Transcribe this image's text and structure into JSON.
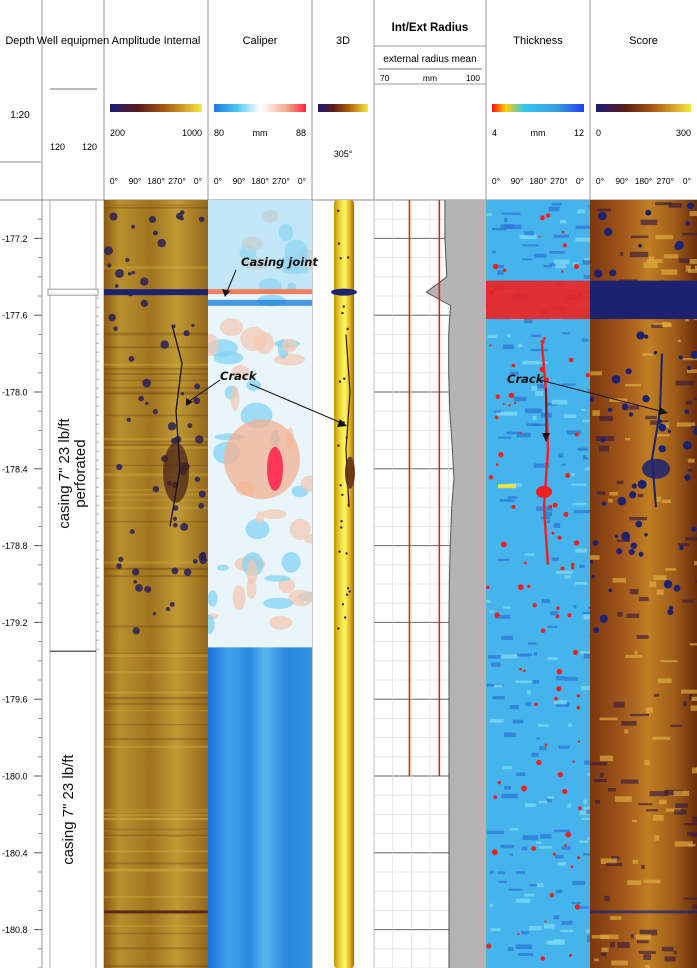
{
  "chart_data": {
    "type": "well-log",
    "depth_axis": {
      "title": "Depth",
      "scale": "1:20",
      "range": [
        177.0,
        181.0
      ],
      "ticks": [
        -177.2,
        -177.6,
        -178.0,
        -178.4,
        -178.8,
        -179.2,
        -179.6,
        -180.0,
        -180.4,
        -180.8
      ],
      "tick_labels": [
        "-177.2",
        "-177.6",
        "-178.0",
        "-178.4",
        "-178.8",
        "-179.2",
        "-179.6",
        "-180.0",
        "-180.4",
        "-180.8"
      ]
    },
    "tracks": [
      {
        "key": "well",
        "title": "Well equipmen",
        "scale_min": "120",
        "scale_max": "120"
      },
      {
        "key": "amp",
        "title": "Amplitude Internal",
        "scale_min": "200",
        "scale_max": "1000",
        "unit": "",
        "colormap": [
          "#1a1d7a",
          "#5a1a1a",
          "#a85c10",
          "#e0b030",
          "#f0ec40"
        ],
        "azimuth_ticks": [
          "0°",
          "90°",
          "180°",
          "270°",
          "0°"
        ]
      },
      {
        "key": "cal",
        "title": "Caliper",
        "scale_min": "80",
        "scale_max": "88",
        "unit": "mm",
        "colormap": [
          "#1c7ae0",
          "#48c8f0",
          "#ffffff",
          "#f0b090",
          "#ff2040"
        ],
        "azimuth_ticks": [
          "0°",
          "90°",
          "180°",
          "270°",
          "0°"
        ]
      },
      {
        "key": "d3",
        "title": "3D",
        "view_angle": "305°",
        "colormap": [
          "#1a1d7a",
          "#5a1a1a",
          "#a85c10",
          "#e0b030",
          "#f0ec40"
        ]
      },
      {
        "key": "rad",
        "title": "Int/Ext Radius",
        "curve_label": "external radius mean",
        "scale_min": "70",
        "scale_max": "100",
        "unit": "mm"
      },
      {
        "key": "thk",
        "title": "Thickness",
        "scale_min": "4",
        "scale_max": "12",
        "unit": "mm",
        "colormap": [
          "#ff1010",
          "#ffd000",
          "#30c8f0",
          "#38a0e0",
          "#2040f0"
        ],
        "azimuth_ticks": [
          "0°",
          "90°",
          "180°",
          "270°",
          "0°"
        ]
      },
      {
        "key": "score",
        "title": "Score",
        "scale_min": "0",
        "scale_max": "300",
        "unit": "",
        "colormap": [
          "#1a1d7a",
          "#5a1a1a",
          "#a85c10",
          "#e0b030",
          "#f0ec40"
        ],
        "azimuth_ticks": [
          "0°",
          "90°",
          "180°",
          "270°",
          "0°"
        ]
      }
    ],
    "intervals": [
      {
        "label": "casing 7\" 23 lb/ft perforated",
        "top": 177.5,
        "bottom": 179.35
      },
      {
        "label": "casing 7\" 23 lb/ft",
        "top": 179.35,
        "bottom": 181.0
      }
    ],
    "annotations": [
      {
        "text": "Casing joint",
        "depth": 177.45
      },
      {
        "text": "Crack",
        "depth": 177.9
      },
      {
        "text": "Crack",
        "depth": 177.9
      }
    ],
    "external_radius_mean_mm": {
      "depth": [
        177.0,
        177.2,
        177.4,
        177.48,
        177.55,
        177.7,
        177.9,
        178.1,
        178.3,
        178.45,
        178.6,
        178.8,
        179.0,
        179.2,
        179.4,
        179.6,
        179.8,
        180.0,
        180.2,
        180.4,
        180.6,
        180.8,
        181.0
      ],
      "value": [
        89.0,
        89.0,
        89.5,
        84.0,
        90.5,
        90.0,
        90.0,
        90.3,
        91.0,
        91.4,
        90.8,
        90.4,
        90.2,
        90.1,
        90.1,
        90.1,
        90.1,
        90.1,
        90.1,
        90.1,
        90.1,
        90.1,
        90.1
      ]
    },
    "internal_radius_lines_mm": [
      {
        "value": 79.5,
        "top": 177.0,
        "bottom": 180.0,
        "color": "#e02020"
      },
      {
        "value": 87.5,
        "top": 177.0,
        "bottom": 180.0,
        "color": "#e02020"
      }
    ]
  }
}
